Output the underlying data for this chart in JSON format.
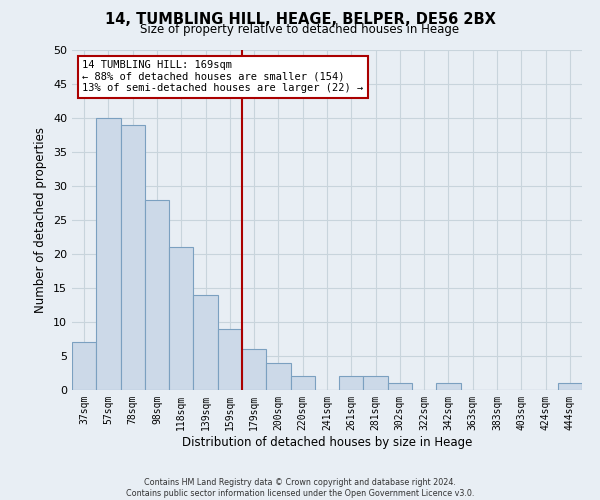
{
  "title": "14, TUMBLING HILL, HEAGE, BELPER, DE56 2BX",
  "subtitle": "Size of property relative to detached houses in Heage",
  "xlabel": "Distribution of detached houses by size in Heage",
  "ylabel": "Number of detached properties",
  "bar_labels": [
    "37sqm",
    "57sqm",
    "78sqm",
    "98sqm",
    "118sqm",
    "139sqm",
    "159sqm",
    "179sqm",
    "200sqm",
    "220sqm",
    "241sqm",
    "261sqm",
    "281sqm",
    "302sqm",
    "322sqm",
    "342sqm",
    "363sqm",
    "383sqm",
    "403sqm",
    "424sqm",
    "444sqm"
  ],
  "bar_values": [
    7,
    40,
    39,
    28,
    21,
    14,
    9,
    6,
    4,
    2,
    0,
    2,
    2,
    1,
    0,
    1,
    0,
    0,
    0,
    0,
    1
  ],
  "bar_color": "#ccd9e8",
  "bar_edge_color": "#7ba0c0",
  "vline_x": 6.5,
  "vline_color": "#aa0000",
  "annotation_title": "14 TUMBLING HILL: 169sqm",
  "annotation_line1": "← 88% of detached houses are smaller (154)",
  "annotation_line2": "13% of semi-detached houses are larger (22) →",
  "annotation_box_facecolor": "#ffffff",
  "annotation_box_edgecolor": "#aa0000",
  "ylim": [
    0,
    50
  ],
  "yticks": [
    0,
    5,
    10,
    15,
    20,
    25,
    30,
    35,
    40,
    45,
    50
  ],
  "footer_line1": "Contains HM Land Registry data © Crown copyright and database right 2024.",
  "footer_line2": "Contains public sector information licensed under the Open Government Licence v3.0.",
  "bg_color": "#e8eef4",
  "plot_bg_color": "#e8eef4",
  "grid_color": "#c8d4dc"
}
